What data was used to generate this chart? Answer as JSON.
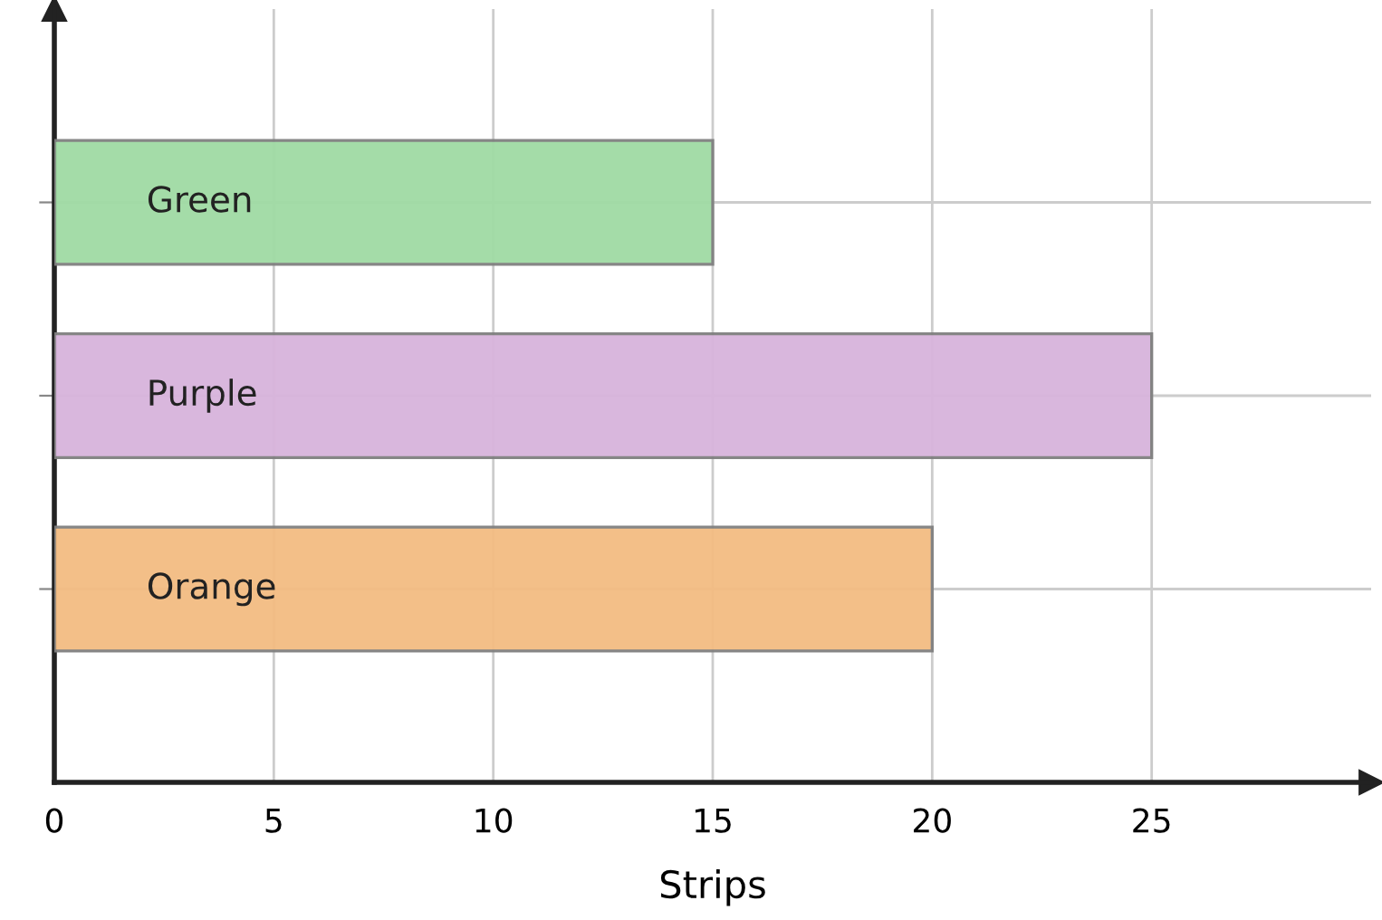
{
  "chart_data": {
    "type": "bar",
    "orientation": "horizontal",
    "xlabel": "Strips",
    "categories": [
      "Green",
      "Purple",
      "Orange"
    ],
    "values": [
      15,
      25,
      20
    ],
    "colors": [
      "#a0dba4",
      "#d8b4dc",
      "#f3bc82"
    ],
    "xlim": [
      0,
      30
    ],
    "xticks": [
      0,
      5,
      10,
      15,
      20,
      25
    ],
    "grid": true,
    "legend": false
  }
}
